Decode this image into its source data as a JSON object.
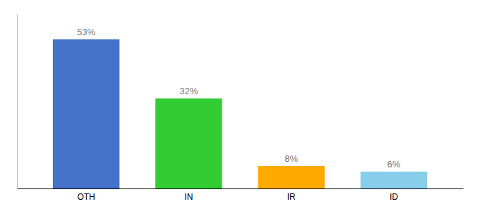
{
  "chart_data": {
    "type": "bar",
    "categories": [
      "OTH",
      "IN",
      "IR",
      "ID"
    ],
    "values": [
      53,
      32,
      8,
      6
    ],
    "value_labels": [
      "53%",
      "32%",
      "8%",
      "6%"
    ],
    "colors": [
      "#4472c9",
      "#33cc33",
      "#ffaa00",
      "#87ceeb"
    ],
    "ylim": [
      0,
      62
    ],
    "data_labels": true,
    "tick_labels": "x"
  }
}
